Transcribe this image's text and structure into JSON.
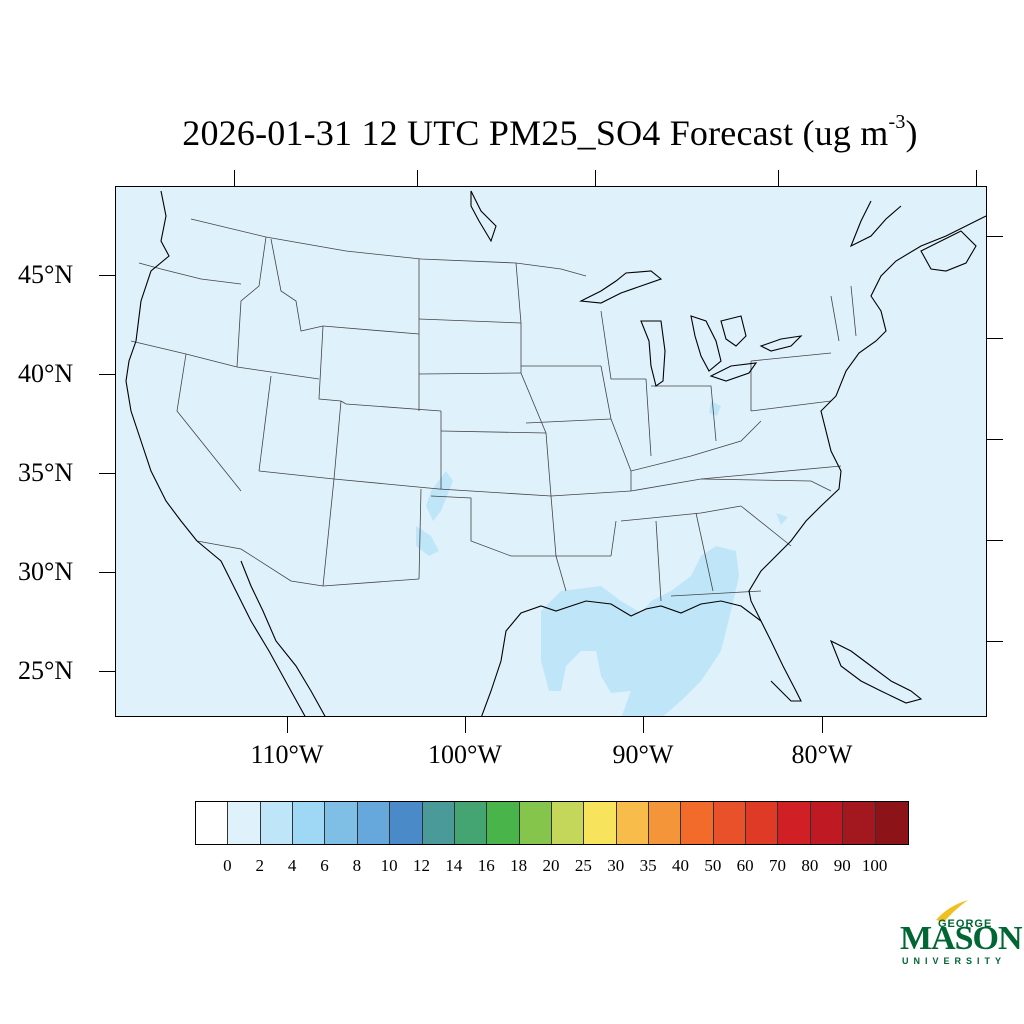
{
  "title": {
    "main": "2026-01-31 12 UTC PM25_SO4 Forecast (ug m",
    "sup": "-3",
    "close": ")"
  },
  "map": {
    "background_color": "#dff1fb",
    "latitude_labels": [
      "45°N",
      "40°N",
      "35°N",
      "30°N",
      "25°N"
    ],
    "longitude_labels": [
      "110°W",
      "100°W",
      "90°W",
      "80°W"
    ],
    "plume_color": "#bfe6f8",
    "plume_value_class": "2-4"
  },
  "colorbar": {
    "levels": [
      "0",
      "2",
      "4",
      "6",
      "8",
      "10",
      "12",
      "14",
      "16",
      "18",
      "20",
      "25",
      "30",
      "35",
      "40",
      "50",
      "60",
      "70",
      "80",
      "90",
      "100"
    ],
    "colors": [
      "#ffffff",
      "#dff1fb",
      "#bfe6f8",
      "#9ed8f4",
      "#7fbfe6",
      "#66a8dc",
      "#4a8ac8",
      "#4a9a9a",
      "#45a572",
      "#48b44a",
      "#86c54b",
      "#c4d75a",
      "#f7e45c",
      "#f7bc4a",
      "#f5953a",
      "#f26b2a",
      "#e9512a",
      "#de3a26",
      "#d11f26",
      "#bf1a23",
      "#a3171f",
      "#8c1419"
    ]
  },
  "logo": {
    "top": "GEORGE",
    "middle": "MASON",
    "bottom": "UNIVERSITY",
    "color": "#006633",
    "accent": "#f0c020"
  }
}
